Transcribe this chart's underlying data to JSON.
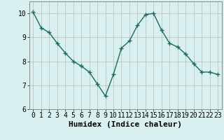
{
  "x": [
    0,
    1,
    2,
    3,
    4,
    5,
    6,
    7,
    8,
    9,
    10,
    11,
    12,
    13,
    14,
    15,
    16,
    17,
    18,
    19,
    20,
    21,
    22,
    23
  ],
  "y": [
    10.05,
    9.4,
    9.2,
    8.75,
    8.35,
    8.0,
    7.8,
    7.55,
    7.05,
    6.55,
    7.45,
    8.55,
    8.85,
    9.5,
    9.95,
    10.0,
    9.3,
    8.75,
    8.6,
    8.3,
    7.9,
    7.55,
    7.55,
    7.45
  ],
  "line_color": "#1a6b5a",
  "marker": "+",
  "marker_size": 4,
  "marker_linewidth": 1.0,
  "bg_color": "#d8f0f0",
  "grid_color": "#c0b8b8",
  "xlabel": "Humidex (Indice chaleur)",
  "xlabel_fontsize": 8,
  "tick_fontsize": 7,
  "ylim": [
    6,
    10.5
  ],
  "xlim": [
    -0.5,
    23.5
  ],
  "yticks": [
    6,
    7,
    8,
    9,
    10
  ],
  "xticks": [
    0,
    1,
    2,
    3,
    4,
    5,
    6,
    7,
    8,
    9,
    10,
    11,
    12,
    13,
    14,
    15,
    16,
    17,
    18,
    19,
    20,
    21,
    22,
    23
  ]
}
